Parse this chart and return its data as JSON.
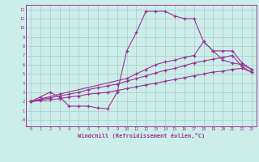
{
  "xlabel": "Windchill (Refroidissement éolien,°C)",
  "background_color": "#cceee8",
  "line_color": "#993399",
  "grid_color": "#aabbcc",
  "xlim": [
    -0.5,
    23.5
  ],
  "ylim": [
    -0.7,
    12.5
  ],
  "xticks": [
    0,
    1,
    2,
    3,
    4,
    5,
    6,
    7,
    8,
    9,
    10,
    11,
    12,
    13,
    14,
    15,
    16,
    17,
    18,
    19,
    20,
    21,
    22,
    23
  ],
  "yticks": [
    0,
    1,
    2,
    3,
    4,
    5,
    6,
    7,
    8,
    9,
    10,
    11,
    12
  ],
  "ytick_labels": [
    "-0",
    "1",
    "2",
    "3",
    "4",
    "5",
    "6",
    "7",
    "8",
    "9",
    "10",
    "11",
    "12"
  ],
  "line1_x": [
    0,
    1,
    2,
    3,
    4,
    5,
    6,
    7,
    8,
    9,
    10,
    11,
    12,
    13,
    14,
    15,
    16,
    17,
    18,
    19,
    20,
    21,
    22,
    23
  ],
  "line1_y": [
    2.0,
    2.5,
    3.0,
    2.5,
    1.5,
    1.5,
    1.5,
    1.3,
    1.2,
    3.0,
    7.5,
    9.5,
    11.8,
    11.8,
    11.8,
    11.3,
    11.0,
    11.0,
    8.5,
    7.5,
    6.5,
    6.2,
    6.0,
    5.5
  ],
  "line2_x": [
    0,
    3,
    10,
    11,
    12,
    13,
    14,
    15,
    16,
    17,
    18,
    19,
    20,
    21,
    22,
    23
  ],
  "line2_y": [
    2.0,
    2.8,
    4.5,
    5.0,
    5.5,
    6.0,
    6.3,
    6.5,
    6.8,
    7.0,
    8.5,
    7.5,
    7.5,
    7.5,
    6.2,
    5.5
  ],
  "line3_x": [
    0,
    1,
    2,
    3,
    4,
    5,
    6,
    7,
    8,
    9,
    10,
    11,
    12,
    13,
    14,
    15,
    16,
    17,
    18,
    19,
    20,
    21,
    22,
    23
  ],
  "line3_y": [
    2.0,
    2.2,
    2.4,
    2.6,
    2.8,
    3.0,
    3.3,
    3.5,
    3.7,
    3.9,
    4.2,
    4.5,
    4.8,
    5.1,
    5.4,
    5.6,
    5.9,
    6.2,
    6.4,
    6.6,
    6.8,
    7.0,
    5.8,
    5.2
  ],
  "line4_x": [
    0,
    1,
    2,
    3,
    4,
    5,
    6,
    7,
    8,
    9,
    10,
    11,
    12,
    13,
    14,
    15,
    16,
    17,
    18,
    19,
    20,
    21,
    22,
    23
  ],
  "line4_y": [
    2.0,
    2.1,
    2.2,
    2.3,
    2.5,
    2.6,
    2.8,
    2.9,
    3.0,
    3.2,
    3.4,
    3.6,
    3.8,
    4.0,
    4.2,
    4.4,
    4.6,
    4.8,
    5.0,
    5.2,
    5.3,
    5.5,
    5.6,
    5.2
  ]
}
